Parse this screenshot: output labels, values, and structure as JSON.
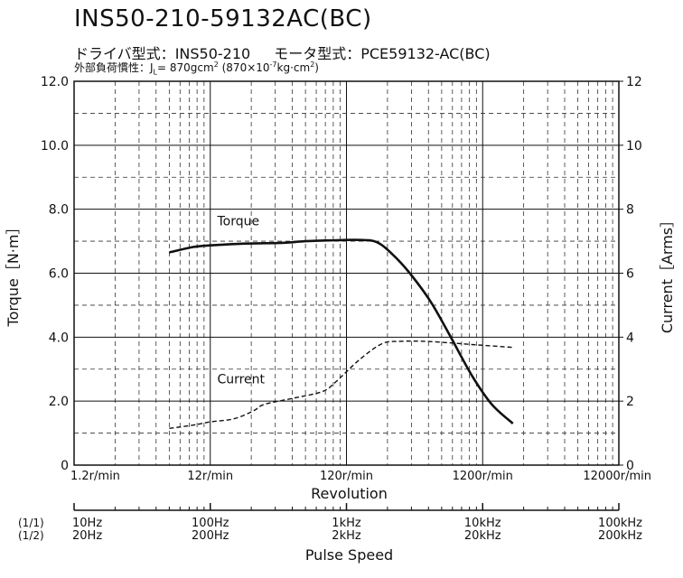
{
  "header": {
    "title": "INS50-210-59132AC(BC)",
    "subtitle_driver_label": "ドライバ型式：",
    "subtitle_driver_value": "INS50-210",
    "subtitle_motor_label": "モータ型式：",
    "subtitle_motor_value": "PCE59132-AC(BC)",
    "inertia_label": "外部負荷慣性：J",
    "inertia_sub": "L",
    "inertia_value_a": "= 870gcm",
    "inertia_sup_a": "2",
    "inertia_value_b": " (870×10",
    "inertia_sup_b": "-7",
    "inertia_value_c": "kg·cm",
    "inertia_sup_c": "2",
    "inertia_value_d": ")"
  },
  "chart_data": {
    "type": "line",
    "title": "INS50-210-59132AC(BC)",
    "xlabel": "Revolution",
    "xscale": "log",
    "xlim": [
      1.2,
      12000
    ],
    "x_tick_labels": [
      "1.2r/min",
      "12r/min",
      "120r/min",
      "1200r/min",
      "12000r/min"
    ],
    "ylabel_left": "Torque［N·m］",
    "ylim_left": [
      0,
      12
    ],
    "y_left_tick_labels": [
      "0",
      "2.0",
      "4.0",
      "6.0",
      "8.0",
      "10.0",
      "12.0"
    ],
    "ylabel_right": "Current［Arms］",
    "ylim_right": [
      0,
      12
    ],
    "y_right_tick_labels": [
      "0",
      "2",
      "4",
      "6",
      "8",
      "10",
      "12"
    ],
    "grid": true,
    "secondary_xlabel": "Pulse Speed",
    "secondary_x_rows": [
      {
        "label": "(1/1)",
        "ticks": [
          "10Hz",
          "100Hz",
          "1kHz",
          "10kHz",
          "100kHz"
        ]
      },
      {
        "label": "(1/2)",
        "ticks": [
          "20Hz",
          "200Hz",
          "2kHz",
          "20kHz",
          "200kHz"
        ]
      }
    ],
    "series": [
      {
        "name": "Torque",
        "axis": "left",
        "style": "solid",
        "points": [
          [
            6,
            6.65
          ],
          [
            9,
            6.82
          ],
          [
            12,
            6.87
          ],
          [
            20,
            6.92
          ],
          [
            40,
            6.95
          ],
          [
            60,
            7.0
          ],
          [
            100,
            7.03
          ],
          [
            150,
            7.04
          ],
          [
            200,
            6.97
          ],
          [
            260,
            6.6
          ],
          [
            350,
            6.0
          ],
          [
            500,
            5.1
          ],
          [
            700,
            4.0
          ],
          [
            1000,
            2.8
          ],
          [
            1400,
            1.9
          ],
          [
            2000,
            1.3
          ]
        ]
      },
      {
        "name": "Current",
        "axis": "right",
        "style": "dashed",
        "points": [
          [
            6,
            1.15
          ],
          [
            9,
            1.25
          ],
          [
            12,
            1.35
          ],
          [
            18,
            1.45
          ],
          [
            25,
            1.7
          ],
          [
            30,
            1.9
          ],
          [
            50,
            2.1
          ],
          [
            80,
            2.3
          ],
          [
            100,
            2.6
          ],
          [
            150,
            3.3
          ],
          [
            220,
            3.8
          ],
          [
            300,
            3.87
          ],
          [
            450,
            3.87
          ],
          [
            700,
            3.82
          ],
          [
            1000,
            3.77
          ],
          [
            2000,
            3.68
          ]
        ]
      }
    ]
  }
}
